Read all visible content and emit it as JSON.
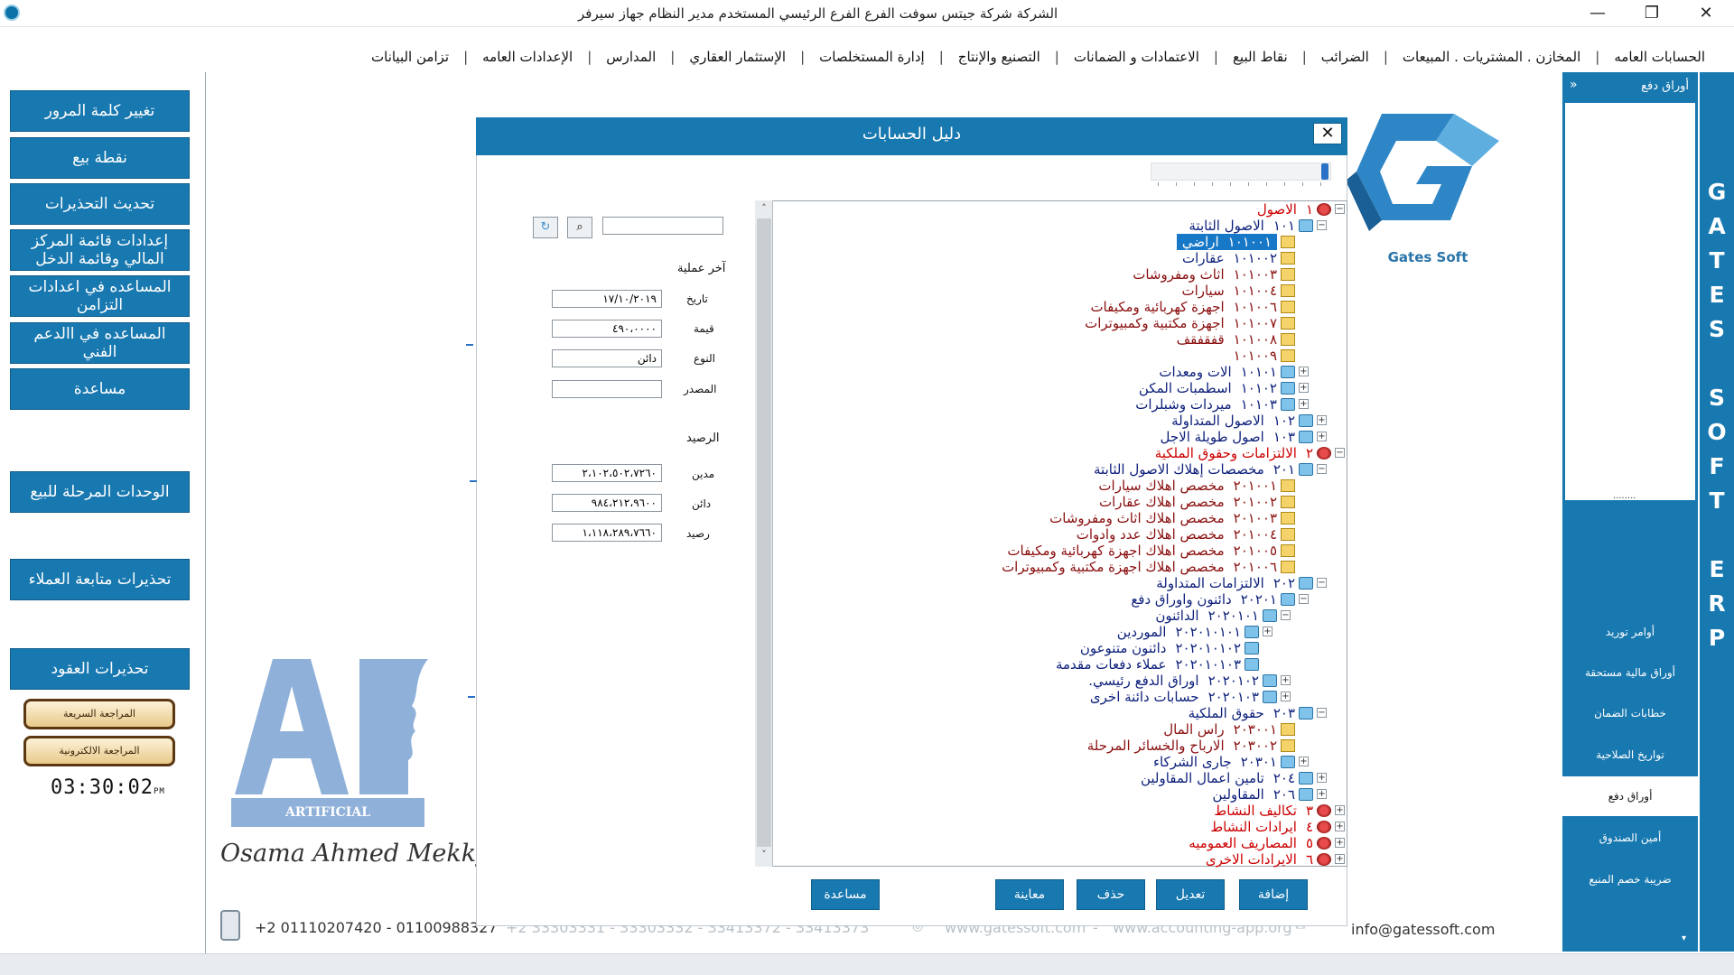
{
  "titlebar": {
    "title": "الشركة شركة جيتس سوفت   الفرع الفرع الرئيسي   المستخدم مدير النظام   جهاز سيرفر",
    "minimize": "—",
    "maximize": "❐",
    "close": "✕"
  },
  "menu": [
    "الحسابات العامه",
    "المخازن . المشتريات . المبيعات",
    "الضرائب",
    "نقاط البيع",
    "الاعتمادات و الضمانات",
    "التصنيع والإنتاج",
    "إدارة المستخلصات",
    "الإستثمار العقاري",
    "المدارس",
    "الإعدادات العامه",
    "تزامن البيانات"
  ],
  "menu_sep": "|",
  "left_panel": {
    "buttons": [
      "تغيير كلمة المرور",
      "نقطة بيع",
      "تحديث التحذيرات",
      "إعدادات قائمة المركز المالي وقائمة الدخل",
      "المساعده في اعدادات التزامن",
      "المساعده في االدعم الفني",
      "مساعدة",
      "الوحدات المرحلة للبيع",
      "تحذيرات متابعة العملاء",
      "تحذيرات العقود"
    ],
    "quick_review": "المراجعة السريعة",
    "electronic_review": "المراجعة الالكترونية",
    "clock": "03:30:02",
    "clock_ampm": "PM"
  },
  "logo": {
    "ai_text": "ARTIFICIAL INTELLIGENCE",
    "signature": "Osama Ahmed Mekky",
    "company": "Gates Soft"
  },
  "contact": {
    "phones": "+2 01110207420  - 01100988327",
    "phones_faded": "+2 33303331  - 33303332  - 33413372  - 33413373",
    "website": "www.gatessoft.com",
    "dash": "-",
    "website2": "www.accounting-app.org",
    "email": "info@gatessoft.com"
  },
  "right_nav": {
    "header": "أوراق دفع",
    "collapse": "«",
    "dots": "........",
    "items": [
      "أوامر توريد",
      "أوراق مالية مستحقة",
      "خطابات الضمان",
      "تواريخ الصلاحية",
      "أوراق دفع",
      "أمين الصندوق",
      "ضريبة خصم المنبع"
    ],
    "active_index": 4,
    "scroll_down": "▾"
  },
  "brand_strip": [
    "G",
    "A",
    "T",
    "E",
    "S",
    "",
    "S",
    "O",
    "F",
    "T",
    "",
    "E",
    "R",
    "P"
  ],
  "dialog": {
    "title": "دليل الحسابات",
    "close": "✕",
    "search_value": "",
    "search_icon": "magnifier",
    "refresh_icon": "refresh",
    "last_operation_label": "آخر عملية",
    "date_label": "تاريخ",
    "date_value": "١٧/١٠/٢٠١٩",
    "value_label": "قيمة",
    "value_value": "٤٩٠،٠٠٠٠",
    "type_label": "النوع",
    "type_value": "دائن",
    "source_label": "المصدر",
    "source_value": "",
    "balance_label": "الرصيد",
    "debit_label": "مدين",
    "debit_value": "٢،١٠٢،٥٠٢،٧٢٦٠",
    "credit_label": "دائن",
    "credit_value": "٩٨٤،٢١٢،٩٦٠٠",
    "net_label": "رصيد",
    "net_value": "١،١١٨،٢٨٩،٧٦٦٠",
    "buttons": {
      "add": "إضافة",
      "edit": "تعديل",
      "delete": "حذف",
      "preview": "معاينة",
      "help": "مساعدة"
    },
    "scroll_up": "˄",
    "scroll_down": "˅",
    "tree": [
      {
        "code": "١",
        "name": "الاصول",
        "color": "red",
        "icon": "root",
        "depth": 0,
        "toggle": "−"
      },
      {
        "code": "١٠١",
        "name": "الاصول الثابتة",
        "color": "navy",
        "icon": "folder",
        "depth": 1,
        "toggle": "−"
      },
      {
        "code": "١٠١٠٠١",
        "name": "اراضي",
        "color": "navy",
        "icon": "doc",
        "depth": 2,
        "selected": true
      },
      {
        "code": "١٠١٠٠٢",
        "name": "عقارات",
        "color": "navy",
        "icon": "doc",
        "depth": 2
      },
      {
        "code": "١٠١٠٠٣",
        "name": "اثاث ومفروشات",
        "color": "dred",
        "icon": "doc",
        "depth": 2
      },
      {
        "code": "١٠١٠٠٤",
        "name": "سيارات",
        "color": "dred",
        "icon": "doc",
        "depth": 2
      },
      {
        "code": "١٠١٠٠٦",
        "name": "اجهزة كهربائية ومكيفات",
        "color": "dred",
        "icon": "doc",
        "depth": 2
      },
      {
        "code": "١٠١٠٠٧",
        "name": "اجهزة مكتبية وكمبيوترات",
        "color": "dred",
        "icon": "doc",
        "depth": 2
      },
      {
        "code": "١٠١٠٠٨",
        "name": "قفقفقف",
        "color": "dred",
        "icon": "doc",
        "depth": 2
      },
      {
        "code": "١٠١٠٠٩",
        "name": "",
        "color": "dred",
        "icon": "doc",
        "depth": 2
      },
      {
        "code": "١٠١٠١",
        "name": "الات ومعدات",
        "color": "navy",
        "icon": "folder",
        "depth": 2,
        "toggle": "+"
      },
      {
        "code": "١٠١٠٢",
        "name": "اسطمبات المكن",
        "color": "navy",
        "icon": "folder",
        "depth": 2,
        "toggle": "+"
      },
      {
        "code": "١٠١٠٣",
        "name": "ميردات وشبلرات",
        "color": "navy",
        "icon": "folder",
        "depth": 2,
        "toggle": "+"
      },
      {
        "code": "١٠٢",
        "name": "الاصول المتداولة",
        "color": "navy",
        "icon": "folder",
        "depth": 1,
        "toggle": "+"
      },
      {
        "code": "١٠٣",
        "name": "اصول طويلة الاجل",
        "color": "navy",
        "icon": "folder",
        "depth": 1,
        "toggle": "+"
      },
      {
        "code": "٢",
        "name": "الالتزامات وحقوق الملكية",
        "color": "red",
        "icon": "root",
        "depth": 0,
        "toggle": "−"
      },
      {
        "code": "٢٠١",
        "name": "مخصصات إهلاك الاصول الثابتة",
        "color": "navy",
        "icon": "folder",
        "depth": 1,
        "toggle": "−"
      },
      {
        "code": "٢٠١٠٠١",
        "name": "مخصص اهلاك سيارات",
        "color": "dred",
        "icon": "doc",
        "depth": 2
      },
      {
        "code": "٢٠١٠٠٢",
        "name": "مخصص اهلاك عقارات",
        "color": "dred",
        "icon": "doc",
        "depth": 2
      },
      {
        "code": "٢٠١٠٠٣",
        "name": "مخصص اهلاك اثاث ومفروشات",
        "color": "dred",
        "icon": "doc",
        "depth": 2
      },
      {
        "code": "٢٠١٠٠٤",
        "name": "مخصص اهلاك عدد وادوات",
        "color": "dred",
        "icon": "doc",
        "depth": 2
      },
      {
        "code": "٢٠١٠٠٥",
        "name": "مخصص اهلاك اجهزة كهربائية ومكيفات",
        "color": "dred",
        "icon": "doc",
        "depth": 2
      },
      {
        "code": "٢٠١٠٠٦",
        "name": "مخصص اهلاك اجهزة مكتبية وكمبيوترات",
        "color": "dred",
        "icon": "doc",
        "depth": 2
      },
      {
        "code": "٢٠٢",
        "name": "الالتزامات المتداولة",
        "color": "navy",
        "icon": "folder",
        "depth": 1,
        "toggle": "−"
      },
      {
        "code": "٢٠٢٠١",
        "name": "دائنون واوراق دفع",
        "color": "navy",
        "icon": "folder",
        "depth": 2,
        "toggle": "−"
      },
      {
        "code": "٢٠٢٠١٠١",
        "name": "الدائنون",
        "color": "navy",
        "icon": "folder",
        "depth": 3,
        "toggle": "−"
      },
      {
        "code": "٢٠٢٠١٠١٠١",
        "name": "الموردين",
        "color": "navy",
        "icon": "folder",
        "depth": 4,
        "toggle": "+"
      },
      {
        "code": "٢٠٢٠١٠١٠٢",
        "name": "دائنون متنوعون",
        "color": "navy",
        "icon": "folder",
        "depth": 4
      },
      {
        "code": "٢٠٢٠١٠١٠٣",
        "name": "عملاء دفعات مقدمة",
        "color": "navy",
        "icon": "folder",
        "depth": 4
      },
      {
        "code": "٢٠٢٠١٠٢",
        "name": "اوراق الدفع رئيسي.",
        "color": "navy",
        "icon": "folder",
        "depth": 3,
        "toggle": "+"
      },
      {
        "code": "٢٠٢٠١٠٣",
        "name": "حسابات دائنة اخرى",
        "color": "navy",
        "icon": "folder",
        "depth": 3,
        "toggle": "+"
      },
      {
        "code": "٢٠٣",
        "name": "حقوق الملكية",
        "color": "navy",
        "icon": "folder",
        "depth": 1,
        "toggle": "−"
      },
      {
        "code": "٢٠٣٠٠١",
        "name": "راس المال",
        "color": "dred",
        "icon": "doc",
        "depth": 2
      },
      {
        "code": "٢٠٣٠٠٢",
        "name": "الارباح والخسائر  المرحلة",
        "color": "dred",
        "icon": "doc",
        "depth": 2
      },
      {
        "code": "٢٠٣٠١",
        "name": "جارى الشركاء",
        "color": "navy",
        "icon": "folder",
        "depth": 2,
        "toggle": "+"
      },
      {
        "code": "٢٠٤",
        "name": "تامين اعمال المقاولين",
        "color": "navy",
        "icon": "folder",
        "depth": 1,
        "toggle": "+"
      },
      {
        "code": "٢٠٦",
        "name": "المقاولين",
        "color": "navy",
        "icon": "folder",
        "depth": 1,
        "toggle": "+"
      },
      {
        "code": "٣",
        "name": "تكاليف النشاط",
        "color": "red",
        "icon": "root",
        "depth": 0,
        "toggle": "+"
      },
      {
        "code": "٤",
        "name": "ايرادات النشاط",
        "color": "red",
        "icon": "root",
        "depth": 0,
        "toggle": "+"
      },
      {
        "code": "٥",
        "name": "المصاريف العموميه",
        "color": "red",
        "icon": "root",
        "depth": 0,
        "toggle": "+"
      },
      {
        "code": "٦",
        "name": "الايرادات الاخرى",
        "color": "red",
        "icon": "root",
        "depth": 0,
        "toggle": "+"
      }
    ]
  }
}
